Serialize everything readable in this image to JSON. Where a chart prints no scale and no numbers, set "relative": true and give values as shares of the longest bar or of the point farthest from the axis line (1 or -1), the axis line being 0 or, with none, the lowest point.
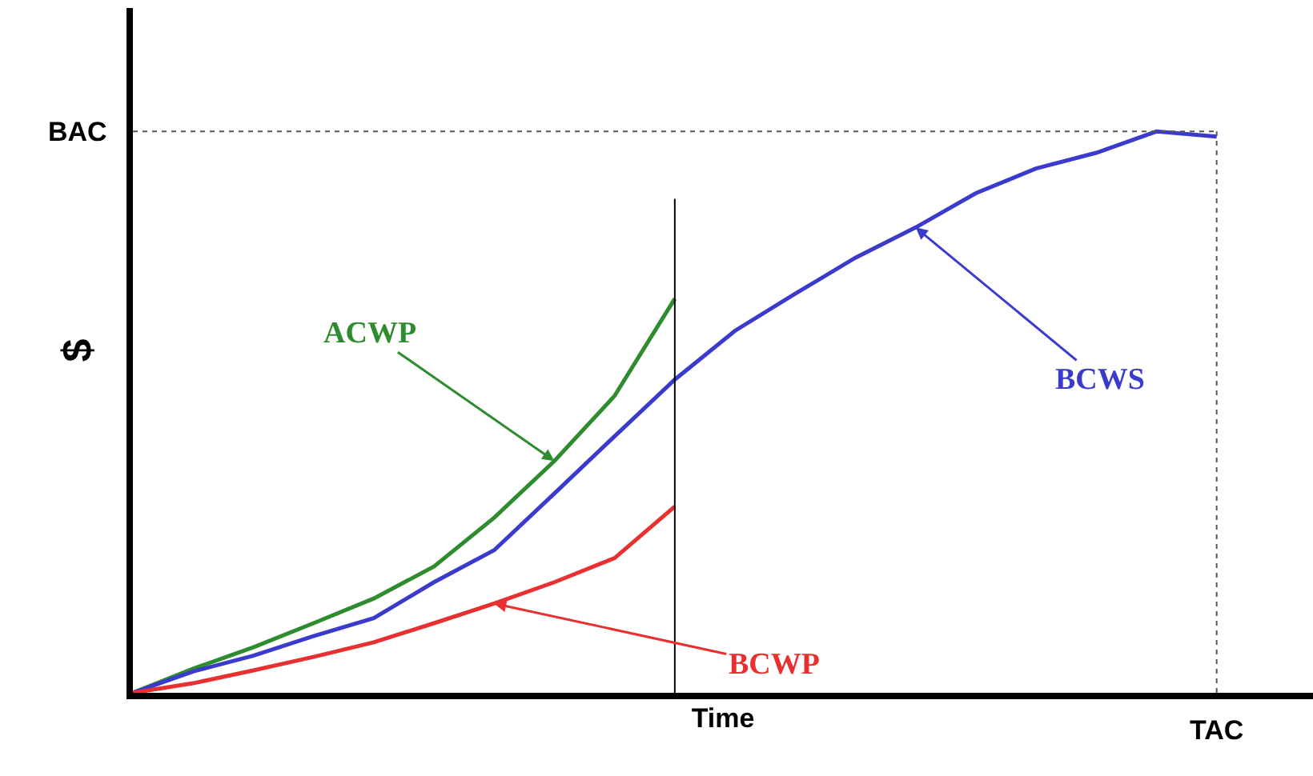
{
  "chart_data": {
    "type": "line",
    "relative": true,
    "xlabel": "Time",
    "ylabel": "$",
    "annotations": [
      "TAC"
    ],
    "legend": false,
    "marker": "none",
    "line_style": "solid",
    "categories": [
      null,
      null,
      null,
      null,
      null,
      null,
      null,
      null,
      null,
      null,
      null,
      null,
      null,
      null,
      null,
      null,
      null,
      null,
      null
    ],
    "series": [
      {
        "name": "ACWP",
        "color": "#2e8b2e",
        "values": [
          0,
          0.043,
          0.081,
          0.124,
          0.168,
          0.225,
          0.312,
          0.413,
          0.529,
          0.702,
          null,
          null,
          null,
          null,
          null,
          null,
          null,
          null,
          null
        ]
      },
      {
        "name": "BCWS",
        "color": "#3a3acc",
        "values": [
          0,
          0.038,
          0.066,
          0.101,
          0.133,
          0.197,
          0.254,
          0.355,
          0.457,
          0.558,
          0.645,
          0.711,
          0.775,
          0.829,
          0.89,
          0.934,
          0.962,
          1.0,
          0.991
        ]
      },
      {
        "name": "BCWP",
        "color": "#e83030",
        "values": [
          0,
          0.017,
          0.04,
          0.064,
          0.09,
          0.124,
          0.159,
          0.197,
          0.24,
          0.332,
          null,
          null,
          null,
          null,
          null,
          null,
          null,
          null,
          null
        ]
      }
    ],
    "ref_lines": [
      {
        "axis": "y",
        "value": 1.0,
        "label": "BAC",
        "color": "#555555",
        "line_style": "dotted"
      }
    ]
  }
}
